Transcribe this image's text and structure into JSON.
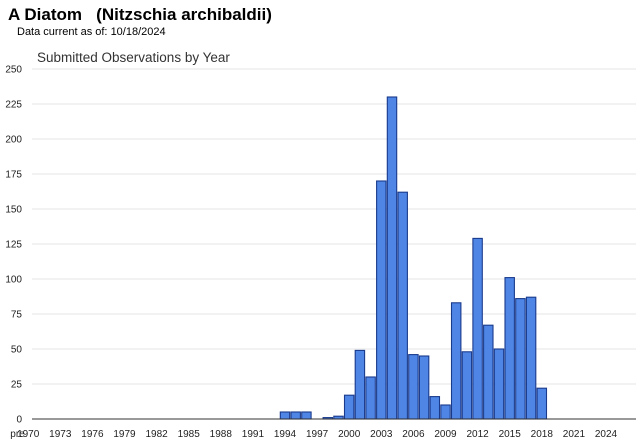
{
  "header": {
    "common_name": "A Diatom",
    "scientific_name": "(Nitzschia archibaldii)",
    "date_label": "Data current as of:",
    "date_value": "10/18/2024"
  },
  "colors": {
    "bar_fill": "#4f86e6",
    "bar_stroke": "#1a3a8c",
    "gridline": "#e4e4e4",
    "axis": "#333333"
  },
  "chart_data": {
    "type": "bar",
    "title": "Submitted Observations by Year",
    "xlabel": "",
    "ylabel": "",
    "ylim": [
      0,
      250
    ],
    "yticks": [
      0,
      25,
      50,
      75,
      100,
      125,
      150,
      175,
      200,
      225,
      250
    ],
    "grid": true,
    "categories": [
      "pre",
      "1970",
      "1971",
      "1972",
      "1973",
      "1974",
      "1975",
      "1976",
      "1977",
      "1978",
      "1979",
      "1980",
      "1981",
      "1982",
      "1983",
      "1984",
      "1985",
      "1986",
      "1987",
      "1988",
      "1989",
      "1990",
      "1991",
      "1992",
      "1993",
      "1994",
      "1995",
      "1996",
      "1997",
      "1998",
      "1999",
      "2000",
      "2001",
      "2002",
      "2003",
      "2004",
      "2005",
      "2006",
      "2007",
      "2008",
      "2009",
      "2010",
      "2011",
      "2012",
      "2013",
      "2014",
      "2015",
      "2016",
      "2017",
      "2018",
      "2019",
      "2020",
      "2021",
      "2022",
      "2023",
      "2024"
    ],
    "x_tick_labels": [
      "pre",
      "1970",
      "1973",
      "1976",
      "1979",
      "1982",
      "1985",
      "1988",
      "1991",
      "1994",
      "1997",
      "2000",
      "2003",
      "2006",
      "2009",
      "2012",
      "2015",
      "2018",
      "2021",
      "2024"
    ],
    "values": [
      0,
      0,
      0,
      0,
      0,
      0,
      0,
      0,
      0,
      0,
      0,
      0,
      0,
      0,
      0,
      0,
      0,
      0,
      0,
      0,
      0,
      0,
      0,
      0,
      0,
      5,
      5,
      5,
      0,
      1,
      2,
      17,
      49,
      30,
      170,
      230,
      162,
      46,
      45,
      16,
      10,
      83,
      48,
      129,
      67,
      50,
      101,
      86,
      87,
      22,
      0,
      0,
      0,
      0,
      0,
      0
    ]
  }
}
